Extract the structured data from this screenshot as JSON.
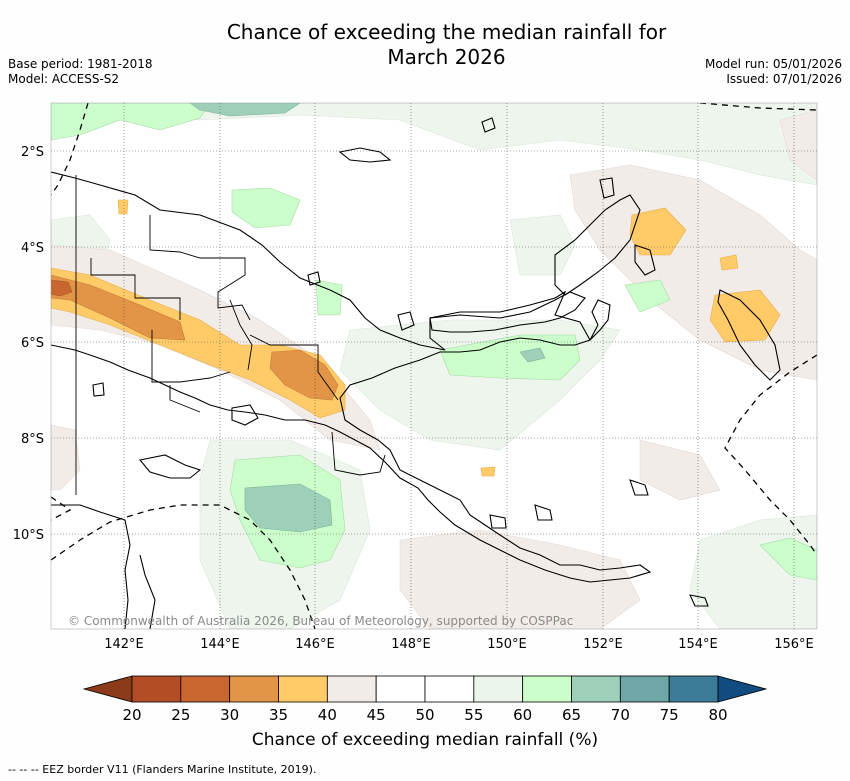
{
  "title_line1": "Chance of exceeding the median rainfall for",
  "title_line2": "March 2026",
  "base_period": "Base period: 1981-2018",
  "model": "Model: ACCESS-S2",
  "model_run": "Model run: 05/01/2026",
  "issued": "Issued: 07/01/2026",
  "copyright": "© Commonwealth of Australia 2026, Bureau of Meteorology, supported by COSPPac",
  "lat_labels": [
    "2°S",
    "4°S",
    "6°S",
    "8°S",
    "10°S"
  ],
  "lon_labels": [
    "142°E",
    "144°E",
    "146°E",
    "148°E",
    "150°E",
    "152°E",
    "154°E",
    "156°E"
  ],
  "colorbar": {
    "ticks": [
      "20",
      "25",
      "30",
      "35",
      "40",
      "45",
      "50",
      "55",
      "60",
      "65",
      "70",
      "75",
      "80"
    ],
    "colors": [
      "#8b3a1a",
      "#b34d25",
      "#c9662f",
      "#e29447",
      "#fecb68",
      "#f2ece8",
      "#ffffff",
      "#ffffff",
      "#ecf5ec",
      "#ccfecc",
      "#9dcfb9",
      "#6fa6a6",
      "#3d7c99",
      "#114b80"
    ],
    "label": "Chance of exceeding median rainfall (%)"
  },
  "footer": "--  --  -- EEZ border V11 (Flanders Marine Institute, 2019)."
}
